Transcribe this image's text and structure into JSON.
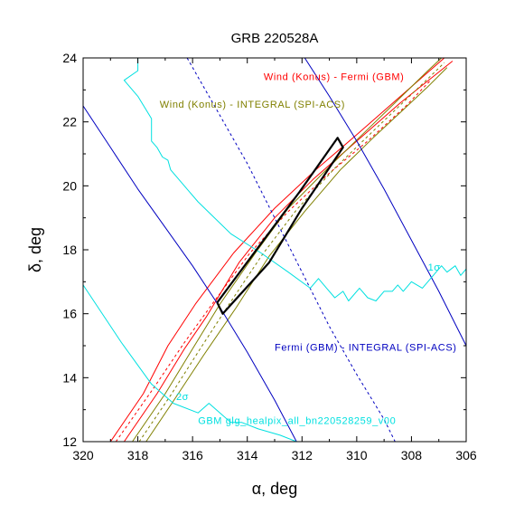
{
  "chart_data": {
    "type": "line",
    "title": "GRB 220528A",
    "xlabel": "α, deg",
    "ylabel": "δ, deg",
    "xlim": [
      320,
      306
    ],
    "ylim": [
      12,
      24
    ],
    "x_reversed": true,
    "xticks": [
      320,
      318,
      316,
      314,
      312,
      310,
      308,
      306
    ],
    "yticks": [
      12,
      14,
      16,
      18,
      20,
      22,
      24
    ],
    "series": [
      {
        "key": "kf_outer_left",
        "color": "#ff0000",
        "dash": false,
        "points": [
          [
            319.0,
            12.0
          ],
          [
            317.8,
            13.5
          ],
          [
            316.9,
            15.0
          ],
          [
            315.9,
            16.3
          ],
          [
            314.5,
            17.9
          ],
          [
            313.0,
            19.3
          ],
          [
            311.5,
            20.5
          ],
          [
            310.0,
            21.6
          ],
          [
            308.4,
            22.8
          ],
          [
            306.8,
            24.0
          ]
        ]
      },
      {
        "key": "kf_outer_right",
        "color": "#ff0000",
        "dash": false,
        "points": [
          [
            318.5,
            12.0
          ],
          [
            317.3,
            13.5
          ],
          [
            316.3,
            14.9
          ],
          [
            315.5,
            15.9
          ],
          [
            314.3,
            17.6
          ],
          [
            313.0,
            19.0
          ],
          [
            311.6,
            20.2
          ],
          [
            310.0,
            21.4
          ],
          [
            308.4,
            22.6
          ],
          [
            306.5,
            23.9
          ]
        ]
      },
      {
        "key": "kf_center",
        "color": "#ff0000",
        "dash": true,
        "points": [
          [
            318.8,
            12.0
          ],
          [
            317.4,
            13.7
          ],
          [
            316.3,
            15.1
          ],
          [
            315.2,
            16.4
          ],
          [
            313.9,
            17.9
          ],
          [
            312.5,
            19.2
          ],
          [
            311.0,
            20.4
          ],
          [
            309.6,
            21.4
          ],
          [
            308.2,
            22.5
          ],
          [
            307.3,
            23.3
          ]
        ]
      },
      {
        "key": "ki_outer_left",
        "color": "#808000",
        "dash": false,
        "points": [
          [
            318.2,
            12.0
          ],
          [
            317.0,
            13.5
          ],
          [
            316.0,
            14.9
          ],
          [
            315.0,
            16.3
          ],
          [
            313.7,
            17.9
          ],
          [
            312.5,
            19.3
          ],
          [
            311.0,
            20.6
          ],
          [
            309.8,
            21.6
          ],
          [
            308.6,
            22.6
          ],
          [
            307.4,
            23.6
          ],
          [
            306.9,
            24.0
          ]
        ]
      },
      {
        "key": "ki_outer_right",
        "color": "#808000",
        "dash": false,
        "points": [
          [
            317.7,
            12.0
          ],
          [
            316.6,
            13.4
          ],
          [
            315.6,
            14.7
          ],
          [
            314.4,
            16.2
          ],
          [
            313.2,
            17.8
          ],
          [
            311.9,
            19.2
          ],
          [
            310.6,
            20.5
          ],
          [
            309.4,
            21.5
          ],
          [
            308.4,
            22.3
          ],
          [
            307.4,
            23.1
          ],
          [
            306.7,
            23.7
          ]
        ]
      },
      {
        "key": "ki_center",
        "color": "#808000",
        "dash": true,
        "points": [
          [
            317.95,
            12.0
          ],
          [
            316.8,
            13.45
          ],
          [
            315.8,
            14.8
          ],
          [
            314.7,
            16.25
          ],
          [
            313.45,
            17.85
          ],
          [
            312.2,
            19.25
          ],
          [
            310.8,
            20.55
          ],
          [
            309.6,
            21.55
          ],
          [
            308.5,
            22.45
          ],
          [
            307.4,
            23.35
          ],
          [
            306.8,
            23.85
          ]
        ]
      },
      {
        "key": "fi_left",
        "color": "#0000c0",
        "dash": false,
        "points": [
          [
            320.0,
            22.5
          ],
          [
            319.0,
            21.2
          ],
          [
            318.0,
            19.9
          ],
          [
            317.0,
            18.7
          ],
          [
            316.0,
            17.5
          ],
          [
            315.0,
            16.2
          ],
          [
            314.0,
            14.8
          ],
          [
            313.0,
            13.3
          ],
          [
            312.2,
            12.0
          ]
        ]
      },
      {
        "key": "fi_right",
        "color": "#0000c0",
        "dash": false,
        "points": [
          [
            311.9,
            24.0
          ],
          [
            311.0,
            22.8
          ],
          [
            310.0,
            21.4
          ],
          [
            309.0,
            19.9
          ],
          [
            308.0,
            18.3
          ],
          [
            307.0,
            16.7
          ],
          [
            306.0,
            15.0
          ]
        ]
      },
      {
        "key": "fi_center",
        "color": "#0000c0",
        "dash": true,
        "points": [
          [
            316.2,
            24.0
          ],
          [
            315.2,
            22.5
          ],
          [
            314.0,
            20.7
          ],
          [
            313.0,
            19.0
          ],
          [
            312.0,
            17.3
          ],
          [
            311.0,
            15.6
          ],
          [
            310.0,
            14.1
          ],
          [
            309.0,
            12.7
          ],
          [
            308.6,
            12.0
          ]
        ]
      },
      {
        "key": "gbm_1sigma",
        "color": "#00e0e0",
        "dash": false,
        "points": [
          [
            318.6,
            24.0
          ],
          [
            318.0,
            24.0
          ],
          [
            318.0,
            23.6
          ],
          [
            318.5,
            23.3
          ],
          [
            318.0,
            22.8
          ],
          [
            317.5,
            22.1
          ],
          [
            317.5,
            21.4
          ],
          [
            317.3,
            21.2
          ],
          [
            317.1,
            20.9
          ],
          [
            316.9,
            20.8
          ],
          [
            316.8,
            20.5
          ],
          [
            316.1,
            19.8
          ],
          [
            315.8,
            19.5
          ],
          [
            314.6,
            18.5
          ],
          [
            313.5,
            17.9
          ],
          [
            312.5,
            17.3
          ],
          [
            311.7,
            16.8
          ],
          [
            311.4,
            17.1
          ],
          [
            311.1,
            16.8
          ],
          [
            310.8,
            16.5
          ],
          [
            310.5,
            16.7
          ],
          [
            310.3,
            16.4
          ],
          [
            309.9,
            16.8
          ],
          [
            309.6,
            16.5
          ],
          [
            309.3,
            16.4
          ],
          [
            309.0,
            16.7
          ],
          [
            308.7,
            16.7
          ],
          [
            308.5,
            16.9
          ],
          [
            308.3,
            16.7
          ],
          [
            308.0,
            17.0
          ],
          [
            307.6,
            16.8
          ],
          [
            307.3,
            17.1
          ],
          [
            306.9,
            17.5
          ],
          [
            306.7,
            17.3
          ],
          [
            306.4,
            17.5
          ],
          [
            306.2,
            17.2
          ],
          [
            306.0,
            17.4
          ]
        ]
      },
      {
        "key": "gbm_2sigma",
        "color": "#00e0e0",
        "dash": false,
        "points": [
          [
            320.0,
            16.9
          ],
          [
            318.6,
            15.1
          ],
          [
            317.5,
            13.8
          ],
          [
            316.7,
            13.2
          ],
          [
            315.8,
            12.9
          ],
          [
            315.4,
            13.2
          ],
          [
            315.0,
            12.9
          ],
          [
            314.6,
            12.6
          ],
          [
            314.2,
            12.6
          ],
          [
            313.6,
            12.4
          ],
          [
            312.8,
            12.2
          ],
          [
            312.2,
            12.0
          ]
        ]
      },
      {
        "key": "localization_box",
        "color": "#000000",
        "dash": false,
        "width": 2.2,
        "points": [
          [
            315.1,
            16.35
          ],
          [
            313.45,
            18.25
          ],
          [
            312.1,
            19.8
          ],
          [
            310.7,
            21.5
          ],
          [
            310.5,
            21.2
          ],
          [
            312.0,
            19.3
          ],
          [
            313.2,
            17.6
          ],
          [
            314.9,
            16.0
          ],
          [
            315.1,
            16.35
          ]
        ]
      }
    ],
    "annotations": [
      {
        "key": "kf",
        "text": "Wind (Konus) - Fermi (GBM)",
        "color": "#ff0000",
        "x": 313.4,
        "y": 23.3
      },
      {
        "key": "ki",
        "text": "Wind (Konus) - INTEGRAL (SPI-ACS)",
        "color": "#808000",
        "x": 317.2,
        "y": 22.45
      },
      {
        "key": "fi",
        "text": "Fermi (GBM) - INTEGRAL (SPI-ACS)",
        "color": "#0000c0",
        "x": 313.0,
        "y": 14.85
      },
      {
        "key": "one_sigma",
        "text": "1σ",
        "color": "#00e0e0",
        "x": 307.4,
        "y": 17.35
      },
      {
        "key": "two_sigma",
        "text": "2σ",
        "color": "#00e0e0",
        "x": 316.6,
        "y": 13.3
      },
      {
        "key": "gbm",
        "text": "GBM glg_healpix_all_bn220528259_v00",
        "color": "#00e0e0",
        "x": 315.8,
        "y": 12.55
      }
    ]
  }
}
